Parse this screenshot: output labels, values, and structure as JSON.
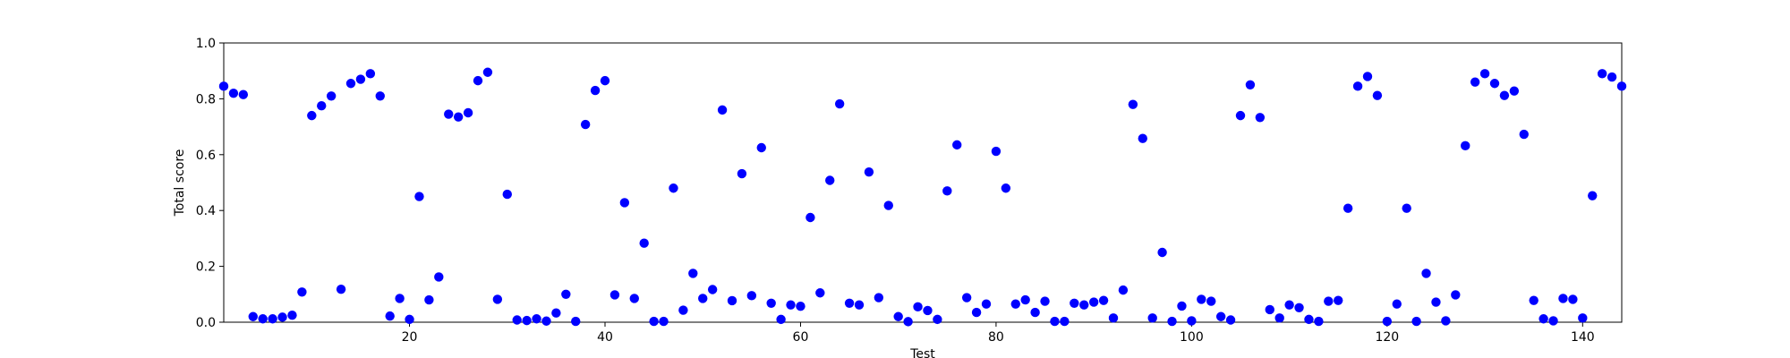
{
  "chart_data": {
    "type": "scatter",
    "title": "",
    "xlabel": "Test",
    "ylabel": "Total score",
    "xlim": [
      1,
      144
    ],
    "ylim": [
      0.0,
      1.0
    ],
    "xticks": [
      20,
      40,
      60,
      80,
      100,
      120,
      140
    ],
    "yticks": [
      0.0,
      0.2,
      0.4,
      0.6,
      0.8,
      1.0
    ],
    "ytick_labels": [
      "0.0",
      "0.2",
      "0.4",
      "0.6",
      "0.8",
      "1.0"
    ],
    "grid": false,
    "legend": "none",
    "marker_color": "#0000ff",
    "series": [
      {
        "values": [
          [
            1,
            0.845
          ],
          [
            2,
            0.82
          ],
          [
            3,
            0.815
          ],
          [
            4,
            0.02
          ],
          [
            5,
            0.012
          ],
          [
            6,
            0.012
          ],
          [
            7,
            0.018
          ],
          [
            8,
            0.025
          ],
          [
            9,
            0.108
          ],
          [
            10,
            0.74
          ],
          [
            11,
            0.775
          ],
          [
            12,
            0.81
          ],
          [
            13,
            0.118
          ],
          [
            14,
            0.855
          ],
          [
            15,
            0.87
          ],
          [
            16,
            0.89
          ],
          [
            17,
            0.81
          ],
          [
            18,
            0.022
          ],
          [
            19,
            0.085
          ],
          [
            20,
            0.01
          ],
          [
            21,
            0.45
          ],
          [
            22,
            0.08
          ],
          [
            23,
            0.162
          ],
          [
            24,
            0.745
          ],
          [
            25,
            0.735
          ],
          [
            26,
            0.75
          ],
          [
            27,
            0.865
          ],
          [
            28,
            0.895
          ],
          [
            29,
            0.082
          ],
          [
            30,
            0.458
          ],
          [
            31,
            0.008
          ],
          [
            32,
            0.006
          ],
          [
            33,
            0.012
          ],
          [
            34,
            0.004
          ],
          [
            35,
            0.033
          ],
          [
            36,
            0.1
          ],
          [
            37,
            0.003
          ],
          [
            38,
            0.708
          ],
          [
            39,
            0.83
          ],
          [
            40,
            0.865
          ],
          [
            41,
            0.098
          ],
          [
            42,
            0.428
          ],
          [
            43,
            0.085
          ],
          [
            44,
            0.283
          ],
          [
            45,
            0.003
          ],
          [
            46,
            0.003
          ],
          [
            47,
            0.48
          ],
          [
            48,
            0.043
          ],
          [
            49,
            0.175
          ],
          [
            50,
            0.085
          ],
          [
            51,
            0.117
          ],
          [
            52,
            0.76
          ],
          [
            53,
            0.077
          ],
          [
            54,
            0.532
          ],
          [
            55,
            0.095
          ],
          [
            56,
            0.625
          ],
          [
            57,
            0.068
          ],
          [
            58,
            0.01
          ],
          [
            59,
            0.062
          ],
          [
            60,
            0.057
          ],
          [
            61,
            0.375
          ],
          [
            62,
            0.105
          ],
          [
            63,
            0.508
          ],
          [
            64,
            0.782
          ],
          [
            65,
            0.068
          ],
          [
            66,
            0.062
          ],
          [
            67,
            0.538
          ],
          [
            68,
            0.088
          ],
          [
            69,
            0.418
          ],
          [
            70,
            0.02
          ],
          [
            71,
            0.002
          ],
          [
            72,
            0.055
          ],
          [
            73,
            0.042
          ],
          [
            74,
            0.01
          ],
          [
            75,
            0.47
          ],
          [
            76,
            0.635
          ],
          [
            77,
            0.088
          ],
          [
            78,
            0.035
          ],
          [
            79,
            0.065
          ],
          [
            80,
            0.612
          ],
          [
            81,
            0.48
          ],
          [
            82,
            0.065
          ],
          [
            83,
            0.08
          ],
          [
            84,
            0.035
          ],
          [
            85,
            0.075
          ],
          [
            86,
            0.003
          ],
          [
            87,
            0.003
          ],
          [
            88,
            0.068
          ],
          [
            89,
            0.062
          ],
          [
            90,
            0.072
          ],
          [
            91,
            0.078
          ],
          [
            92,
            0.015
          ],
          [
            93,
            0.115
          ],
          [
            94,
            0.78
          ],
          [
            95,
            0.658
          ],
          [
            96,
            0.015
          ],
          [
            97,
            0.25
          ],
          [
            98,
            0.003
          ],
          [
            99,
            0.058
          ],
          [
            100,
            0.005
          ],
          [
            101,
            0.082
          ],
          [
            102,
            0.075
          ],
          [
            103,
            0.02
          ],
          [
            104,
            0.008
          ],
          [
            105,
            0.74
          ],
          [
            106,
            0.85
          ],
          [
            107,
            0.733
          ],
          [
            108,
            0.045
          ],
          [
            109,
            0.015
          ],
          [
            110,
            0.062
          ],
          [
            111,
            0.052
          ],
          [
            112,
            0.01
          ],
          [
            113,
            0.003
          ],
          [
            114,
            0.075
          ],
          [
            115,
            0.078
          ],
          [
            116,
            0.408
          ],
          [
            117,
            0.845
          ],
          [
            118,
            0.88
          ],
          [
            119,
            0.812
          ],
          [
            120,
            0.003
          ],
          [
            121,
            0.065
          ],
          [
            122,
            0.408
          ],
          [
            123,
            0.003
          ],
          [
            124,
            0.175
          ],
          [
            125,
            0.072
          ],
          [
            126,
            0.005
          ],
          [
            127,
            0.098
          ],
          [
            128,
            0.632
          ],
          [
            129,
            0.86
          ],
          [
            130,
            0.89
          ],
          [
            131,
            0.855
          ],
          [
            132,
            0.812
          ],
          [
            133,
            0.828
          ],
          [
            134,
            0.673
          ],
          [
            135,
            0.078
          ],
          [
            136,
            0.012
          ],
          [
            137,
            0.005
          ],
          [
            138,
            0.085
          ],
          [
            139,
            0.082
          ],
          [
            140,
            0.015
          ],
          [
            141,
            0.453
          ],
          [
            142,
            0.89
          ],
          [
            143,
            0.878
          ],
          [
            144,
            0.845
          ]
        ]
      }
    ]
  }
}
